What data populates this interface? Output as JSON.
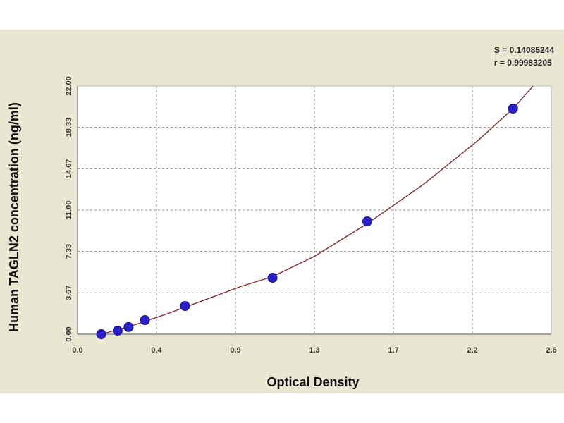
{
  "stats": {
    "s_text": "S = 0.14085244",
    "r_text": "r = 0.99983205"
  },
  "chart_data": {
    "type": "scatter",
    "xlabel": "Optical Density",
    "ylabel": "Human TAGLN2 concentration (ng/ml)",
    "xlim": [
      0.0,
      2.6
    ],
    "ylim": [
      0.0,
      22.0
    ],
    "x_ticks": [
      "0.0",
      "0.4",
      "0.9",
      "1.3",
      "1.7",
      "2.2",
      "2.6"
    ],
    "y_ticks": [
      "0.00",
      "3.67",
      "7.33",
      "11.00",
      "14.67",
      "18.33",
      "22.00"
    ],
    "grid": true,
    "series": [
      {
        "points": [
          {
            "x": 0.13,
            "y": 0.0
          },
          {
            "x": 0.22,
            "y": 0.31
          },
          {
            "x": 0.28,
            "y": 0.63
          },
          {
            "x": 0.37,
            "y": 1.25
          },
          {
            "x": 0.59,
            "y": 2.5
          },
          {
            "x": 1.07,
            "y": 5.0
          },
          {
            "x": 1.59,
            "y": 10.0
          },
          {
            "x": 2.39,
            "y": 20.0
          }
        ],
        "color": "#2a1fc9"
      }
    ],
    "fit_curve_color": "#8a2a2a",
    "fit_curve": [
      {
        "x": 0.13,
        "y": 0.0
      },
      {
        "x": 0.3,
        "y": 0.75
      },
      {
        "x": 0.5,
        "y": 1.85
      },
      {
        "x": 0.7,
        "y": 3.05
      },
      {
        "x": 0.9,
        "y": 4.25
      },
      {
        "x": 1.07,
        "y": 5.1
      },
      {
        "x": 1.3,
        "y": 6.9
      },
      {
        "x": 1.59,
        "y": 9.8
      },
      {
        "x": 1.9,
        "y": 13.3
      },
      {
        "x": 2.2,
        "y": 17.2
      },
      {
        "x": 2.39,
        "y": 20.0
      },
      {
        "x": 2.5,
        "y": 22.0
      }
    ]
  }
}
